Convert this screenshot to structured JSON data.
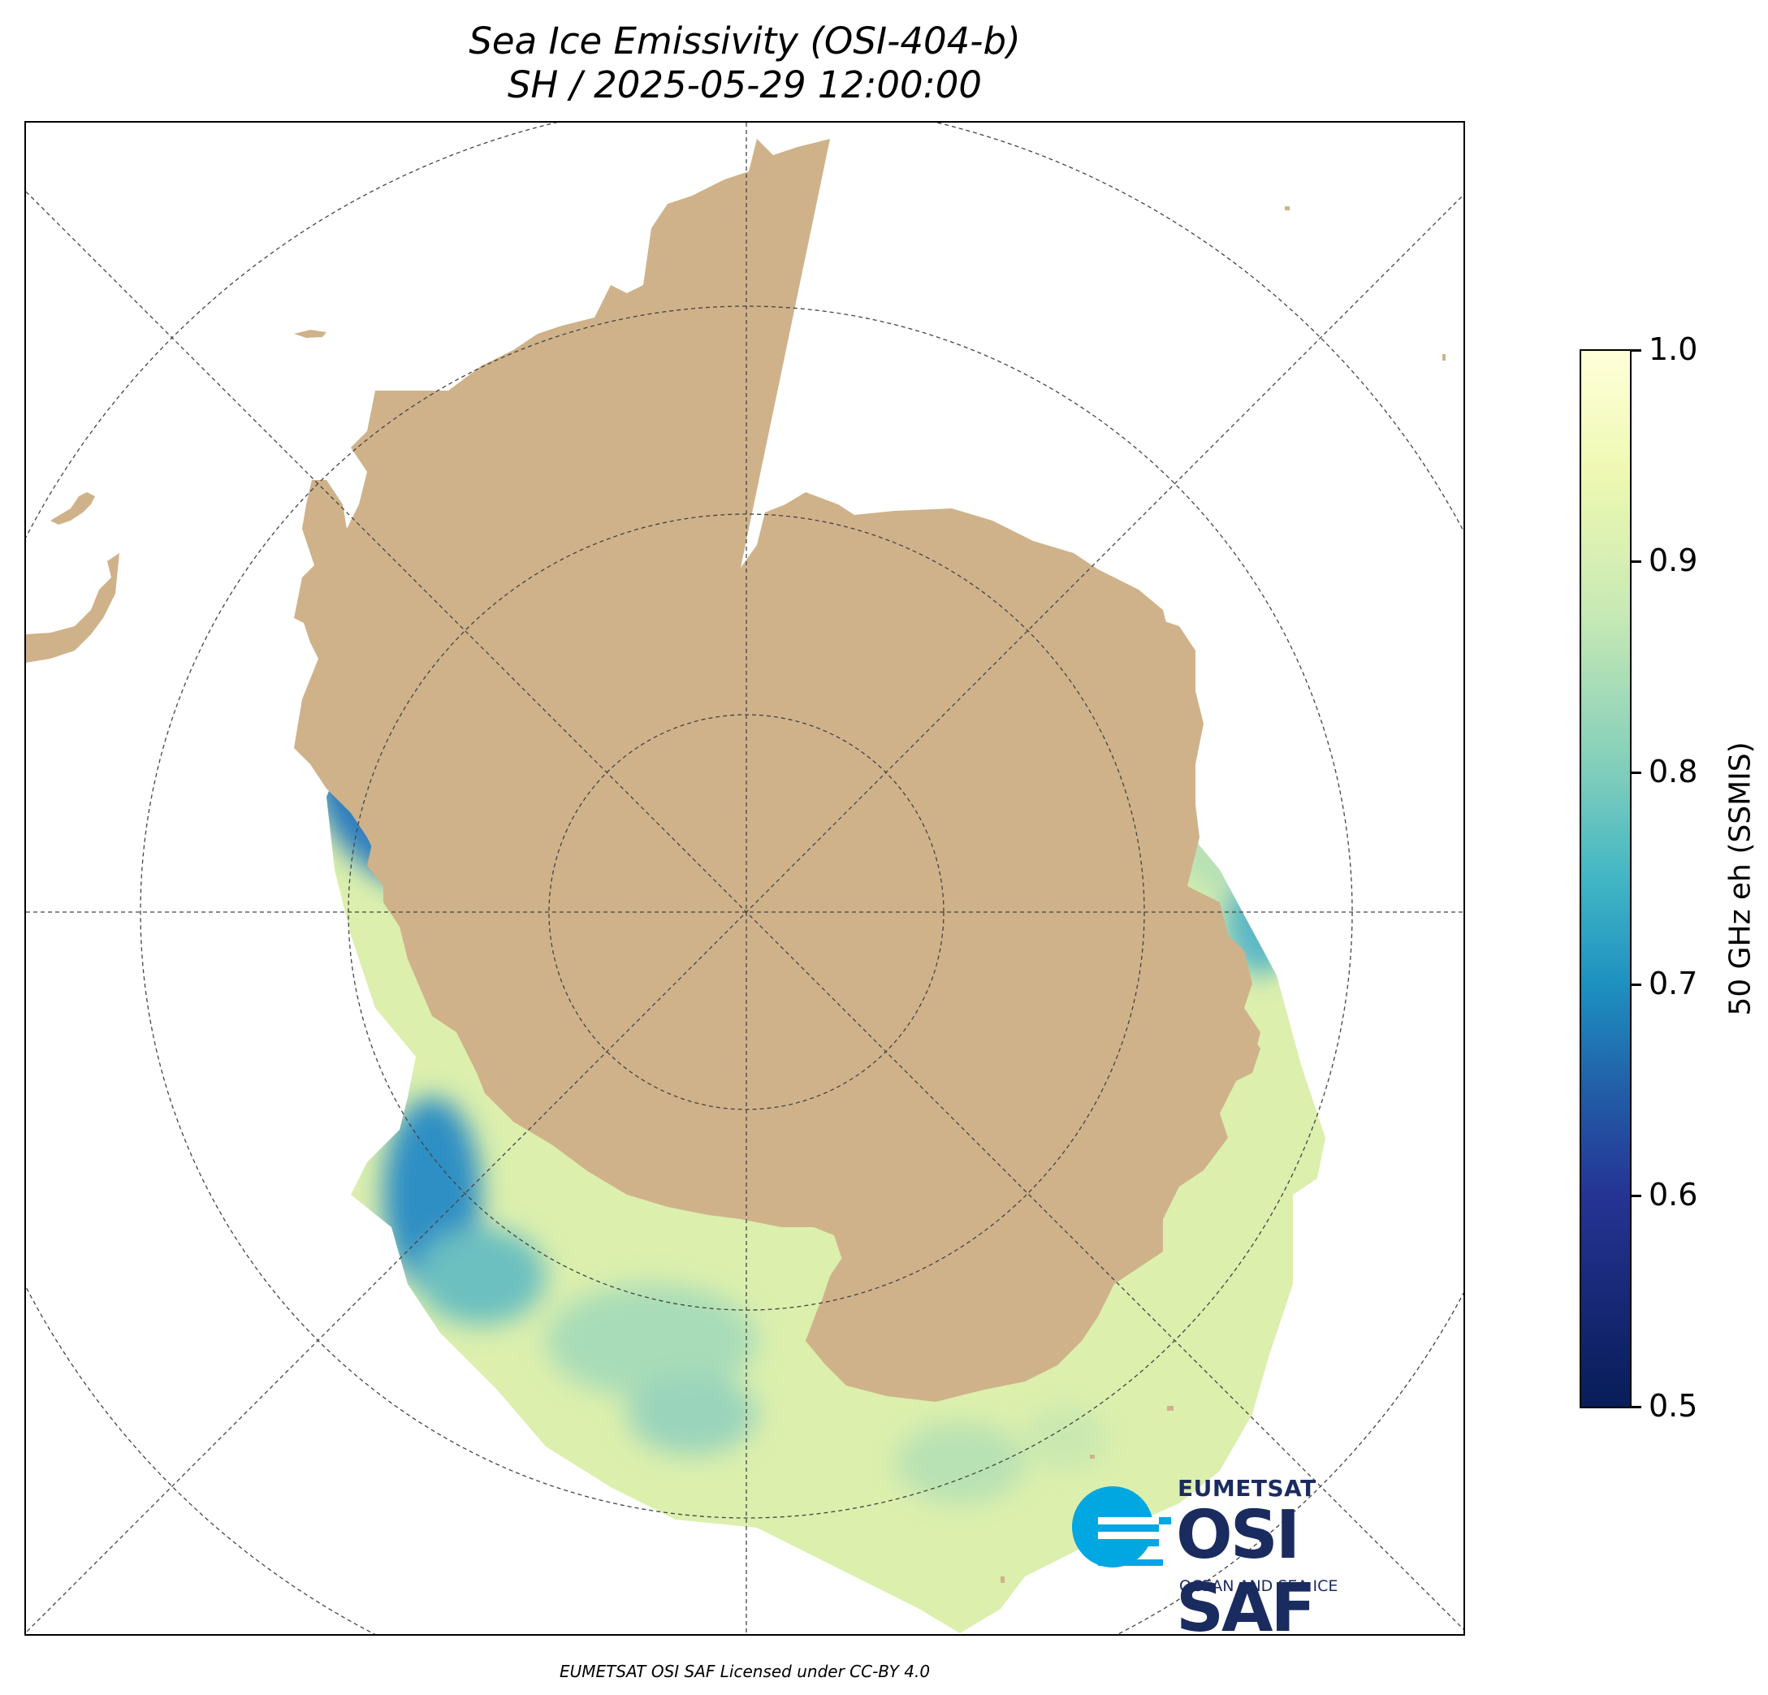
{
  "title_line1": "Sea Ice Emissivity (OSI-404-b)",
  "title_line2": "SH / 2025-05-29 12:00:00",
  "colorbar": {
    "label": "50 GHz eh (SSMIS)",
    "ticks": [
      "1.0",
      "0.9",
      "0.8",
      "0.7",
      "0.6",
      "0.5"
    ],
    "range": [
      0.5,
      1.0
    ],
    "colormap": "YlGnBu_r"
  },
  "logo": {
    "org": "EUMETSAT",
    "name": "OSI SAF",
    "subtitle": "OCEAN AND SEA ICE"
  },
  "credit": "EUMETSAT OSI SAF Licensed under CC-BY 4.0",
  "colors": {
    "land": "#cfb28a",
    "ice_high": "#e2f2b0",
    "ice_mid": "#9fd8b8",
    "ice_low": "#3aa6c8",
    "ice_min": "#2a4fa0",
    "logo_blue": "#00a7e1",
    "logo_navy": "#1a2b5f"
  }
}
